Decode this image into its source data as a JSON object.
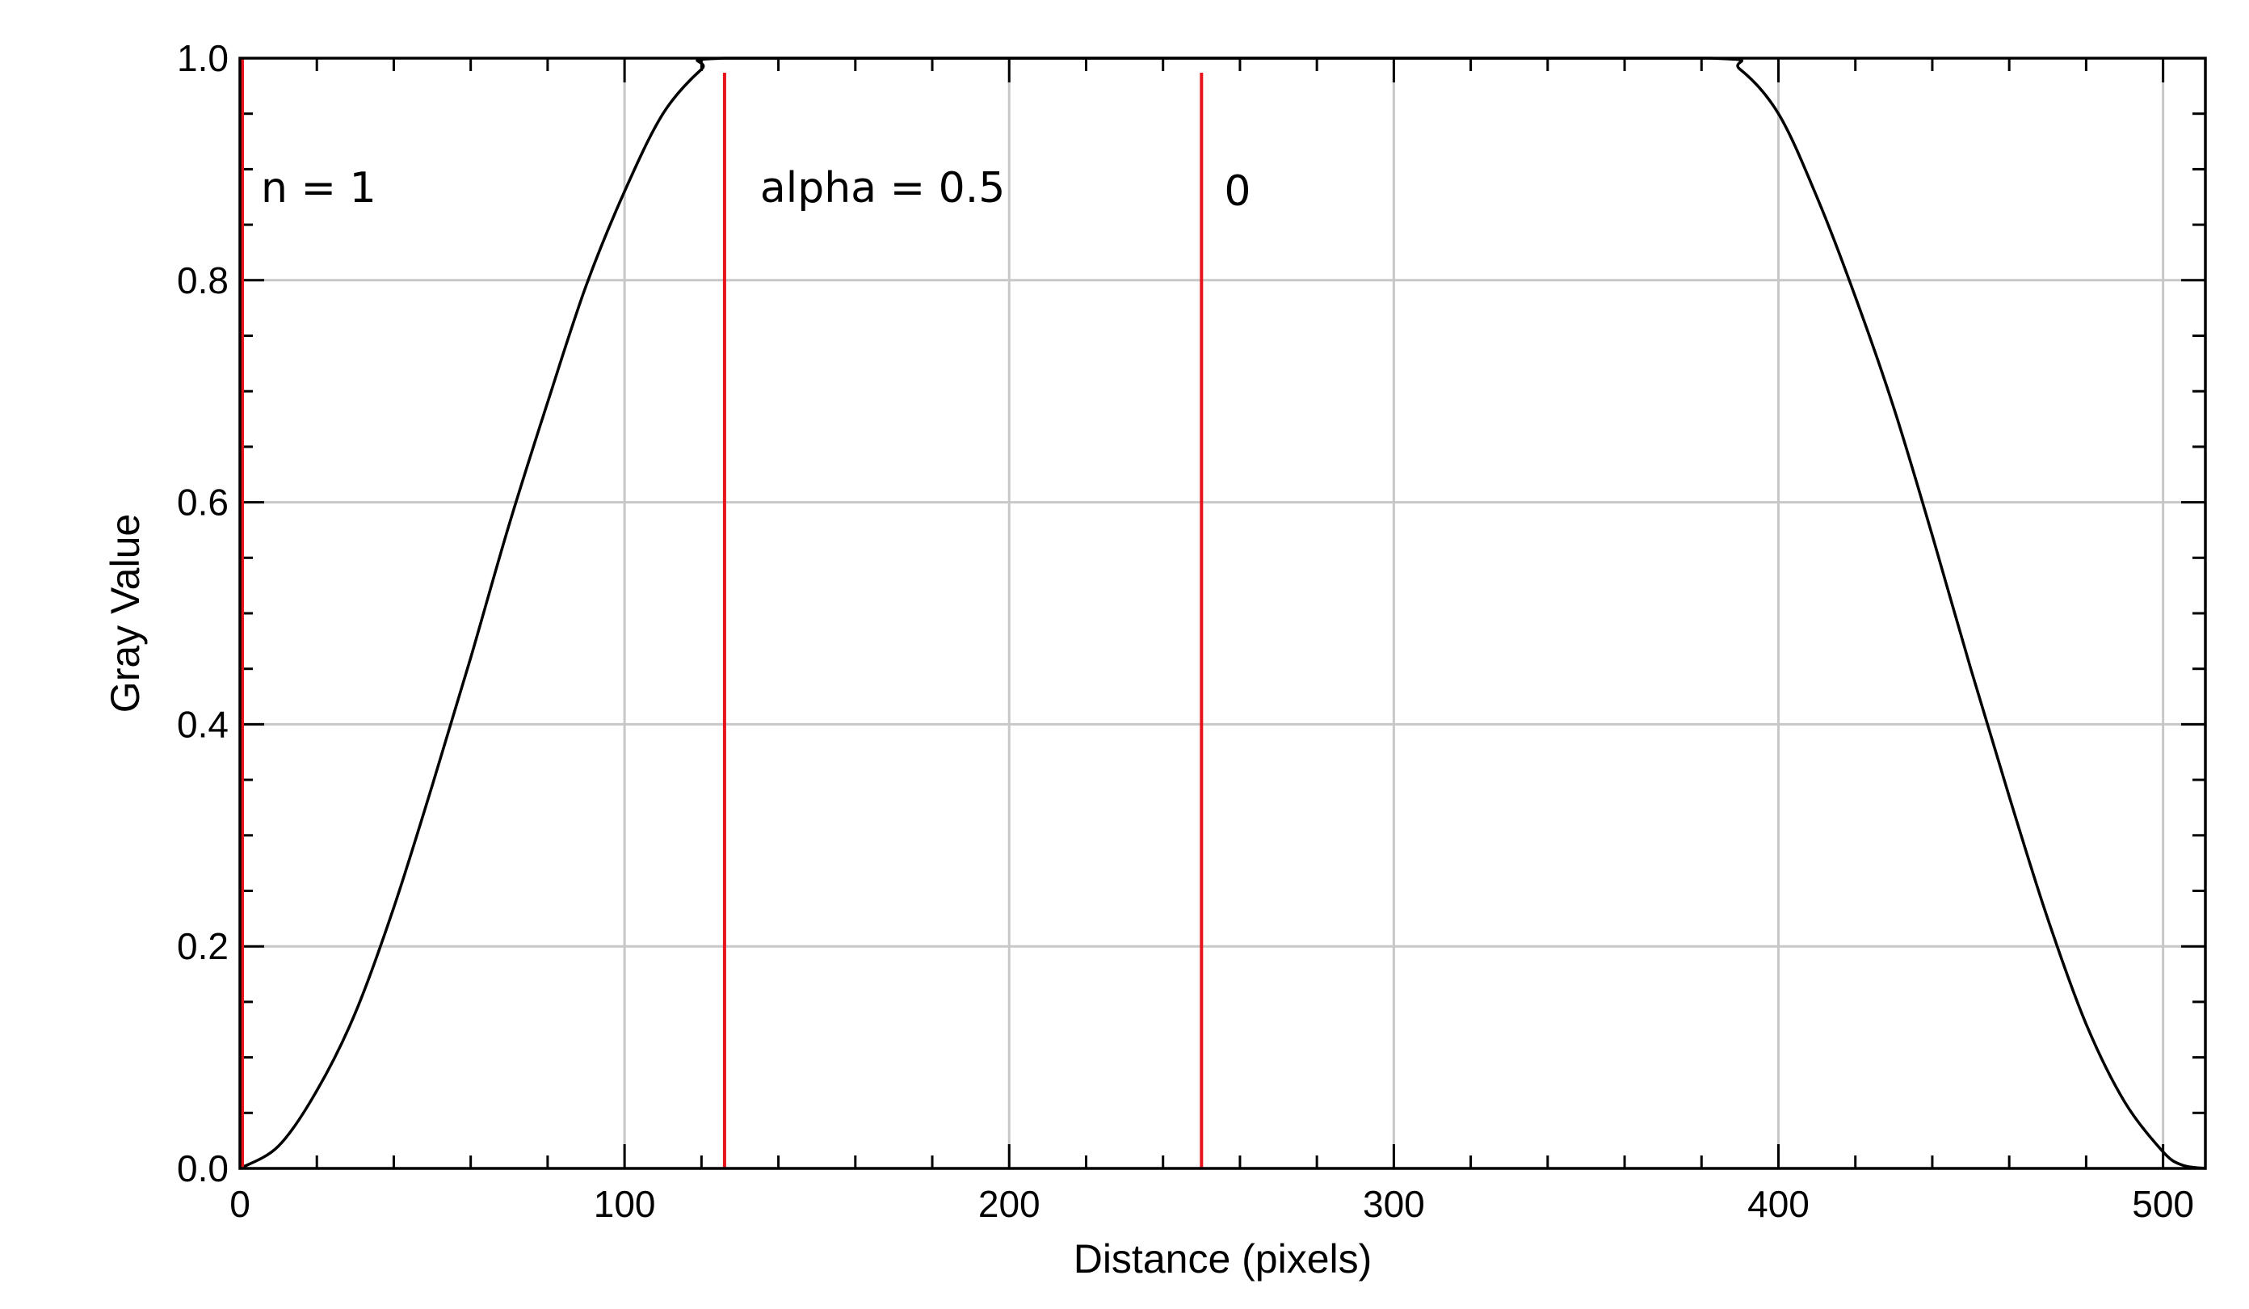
{
  "colors": {
    "curve": "#000000",
    "markers": "#e8141c",
    "grid": "#c8c8c8",
    "background": "#ffffff"
  },
  "chart_data": {
    "type": "line",
    "title": "",
    "xlabel": "Distance (pixels)",
    "ylabel": "Gray Value",
    "xlim": [
      0,
      511
    ],
    "ylim": [
      0,
      1
    ],
    "x_ticks": [
      0,
      100,
      200,
      300,
      400,
      500
    ],
    "x_tick_labels": [
      "0",
      "100",
      "200",
      "300",
      "400",
      "500"
    ],
    "y_ticks": [
      0,
      0.2,
      0.4,
      0.6,
      0.8,
      1.0
    ],
    "y_tick_labels": [
      "0.0",
      "0.2",
      "0.4",
      "0.6",
      "0.8",
      "1.0"
    ],
    "x_minor_step": 20,
    "y_minor_step": 0.05,
    "grid": true,
    "legend": "none",
    "series": [
      {
        "x": [
          0,
          10,
          20,
          30,
          40,
          50,
          60,
          70,
          80,
          90,
          100,
          110,
          120,
          126,
          200,
          300,
          382,
          390,
          400,
          410,
          420,
          430,
          440,
          450,
          460,
          470,
          480,
          490,
          500,
          505,
          511
        ],
        "y": [
          0.0,
          0.02,
          0.07,
          0.14,
          0.235,
          0.345,
          0.46,
          0.58,
          0.69,
          0.795,
          0.88,
          0.95,
          0.99,
          1.0,
          1.0,
          1.0,
          1.0,
          0.99,
          0.95,
          0.875,
          0.785,
          0.685,
          0.57,
          0.45,
          0.335,
          0.225,
          0.13,
          0.06,
          0.015,
          0.003,
          0.0
        ]
      }
    ],
    "vertical_markers": [
      {
        "x": 0,
        "label": "n = 1"
      },
      {
        "x": 126,
        "label": "alpha = 0.5"
      },
      {
        "x": 250,
        "label": "0"
      }
    ]
  }
}
